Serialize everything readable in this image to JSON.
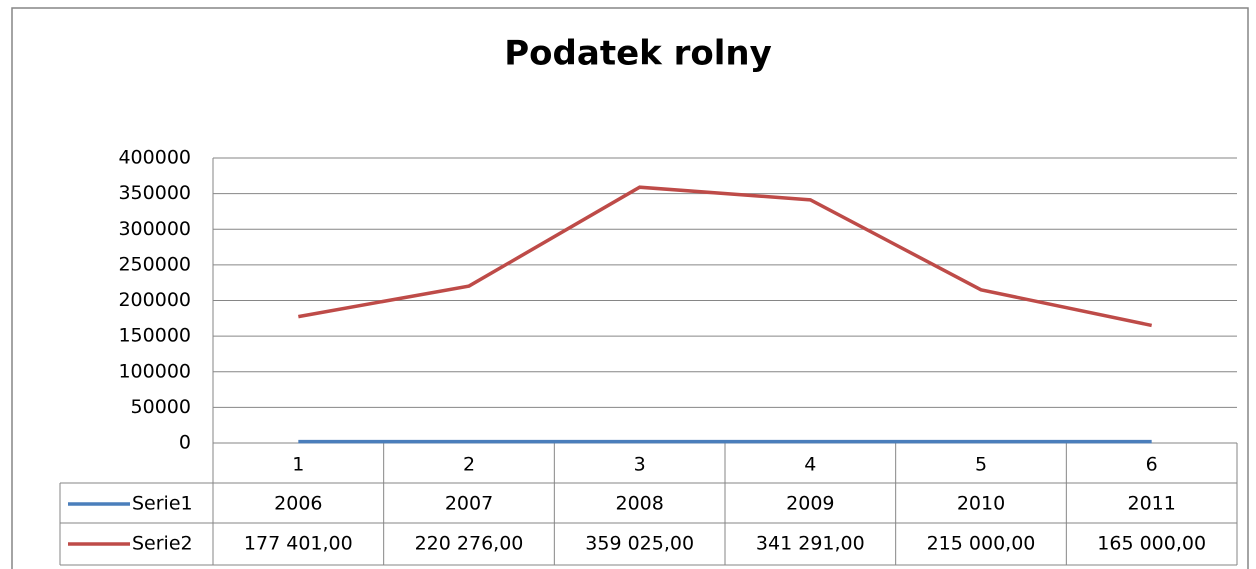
{
  "chart_data": {
    "type": "line",
    "title": "Podatek rolny",
    "categories": [
      "1",
      "2",
      "3",
      "4",
      "5",
      "6"
    ],
    "series": [
      {
        "name": "Serie1",
        "color": "#4a7ebb",
        "values": [
          2006,
          2007,
          2008,
          2009,
          2010,
          2011
        ]
      },
      {
        "name": "Serie2",
        "color": "#be4b48",
        "values": [
          177401,
          220276,
          359025,
          341291,
          215000,
          165000
        ],
        "value_labels": [
          "177 401,00",
          "220 276,00",
          "359 025,00",
          "341 291,00",
          "215 000,00",
          "165 000,00"
        ]
      }
    ],
    "ylim": [
      0,
      400000
    ],
    "yticks": [
      0,
      50000,
      100000,
      150000,
      200000,
      250000,
      300000,
      350000,
      400000
    ],
    "grid": true,
    "data_table": true
  }
}
